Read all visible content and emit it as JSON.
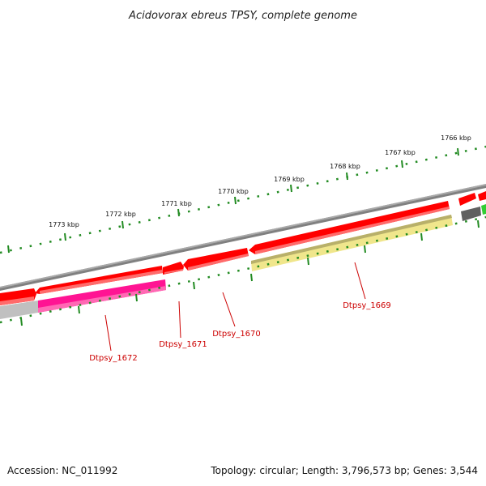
{
  "title": "Acidovorax ebreus TPSY, complete genome",
  "footer": {
    "accession": "Accession: NC_011992",
    "summary": "Topology: circular; Length: 3,796,573 bp; Genes: 3,544"
  },
  "ticks": [
    {
      "label": "1766 kbp"
    },
    {
      "label": "1767 kbp"
    },
    {
      "label": "1768 kbp"
    },
    {
      "label": "1769 kbp"
    },
    {
      "label": "1770 kbp"
    },
    {
      "label": "1771 kbp"
    },
    {
      "label": "1772 kbp"
    },
    {
      "label": "1773 kbp"
    }
  ],
  "genes": [
    {
      "label": "Dtpsy_1669",
      "color": "#f0e68c"
    },
    {
      "label": "Dtpsy_1670",
      "color": "#ff0000"
    },
    {
      "label": "Dtpsy_1671",
      "color": "#ff0000"
    },
    {
      "label": "Dtpsy_1672",
      "color": "#ff1493"
    }
  ],
  "colors": {
    "backbone": "#808080",
    "forward_cds": "#ff0000",
    "tick": "#228b22",
    "label": "#cc0000"
  }
}
